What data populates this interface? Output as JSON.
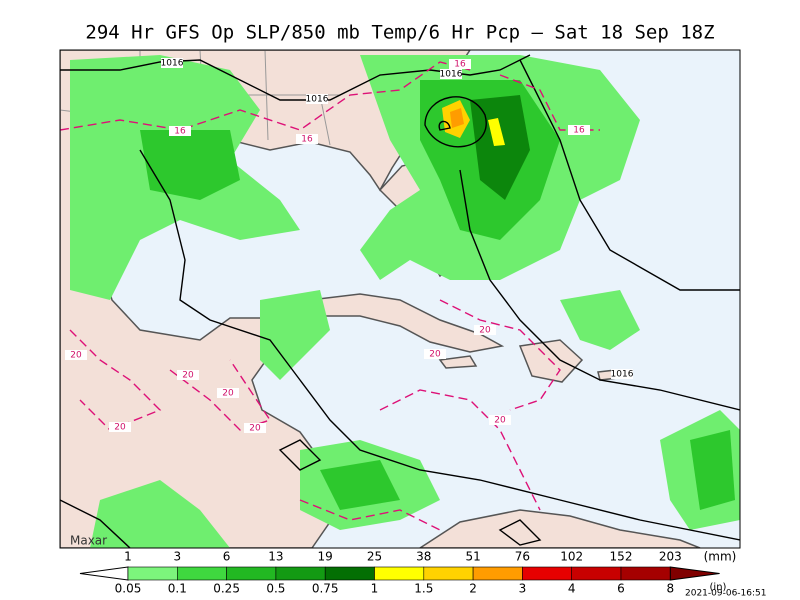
{
  "title": "294 Hr GFS Op SLP/850 mb Temp/6 Hr Pcp – Sat 18 Sep 18Z",
  "brand": "Maxar",
  "timestamp": "2021-09-06-16:51",
  "contour_labels": [
    "1016",
    "1016",
    "1016",
    "1016",
    "16",
    "16",
    "16",
    "16",
    "20",
    "20",
    "20",
    "20",
    "20",
    "20",
    "20",
    "20"
  ],
  "colorbar": {
    "mm_unit": "(mm)",
    "in_unit": "(in)",
    "mm": [
      1,
      3,
      6,
      13,
      19,
      25,
      38,
      51,
      76,
      102,
      152,
      203
    ],
    "inches": [
      0.05,
      0.1,
      0.25,
      0.5,
      0.75,
      1,
      1.5,
      2,
      3,
      4,
      6,
      8
    ],
    "colors": [
      "#7cf57c",
      "#3fd83f",
      "#22b822",
      "#139a13",
      "#036f03",
      "#ffff00",
      "#ffd200",
      "#ff9c00",
      "#e60000",
      "#c80000",
      "#a50000",
      "#800000"
    ]
  }
}
